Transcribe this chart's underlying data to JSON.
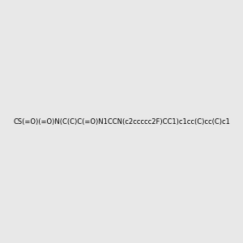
{
  "smiles": "CS(=O)(=O)N(C(C)C(=O)N1CCN(c2ccccc2F)CC1)c1cc(C)cc(C)c1",
  "background_color": "#e8e8e8",
  "image_size": 300,
  "atom_colors": {
    "N": "#0000ff",
    "O": "#ff0000",
    "S": "#cccc00",
    "F": "#ff00ff",
    "C": "#000000"
  }
}
